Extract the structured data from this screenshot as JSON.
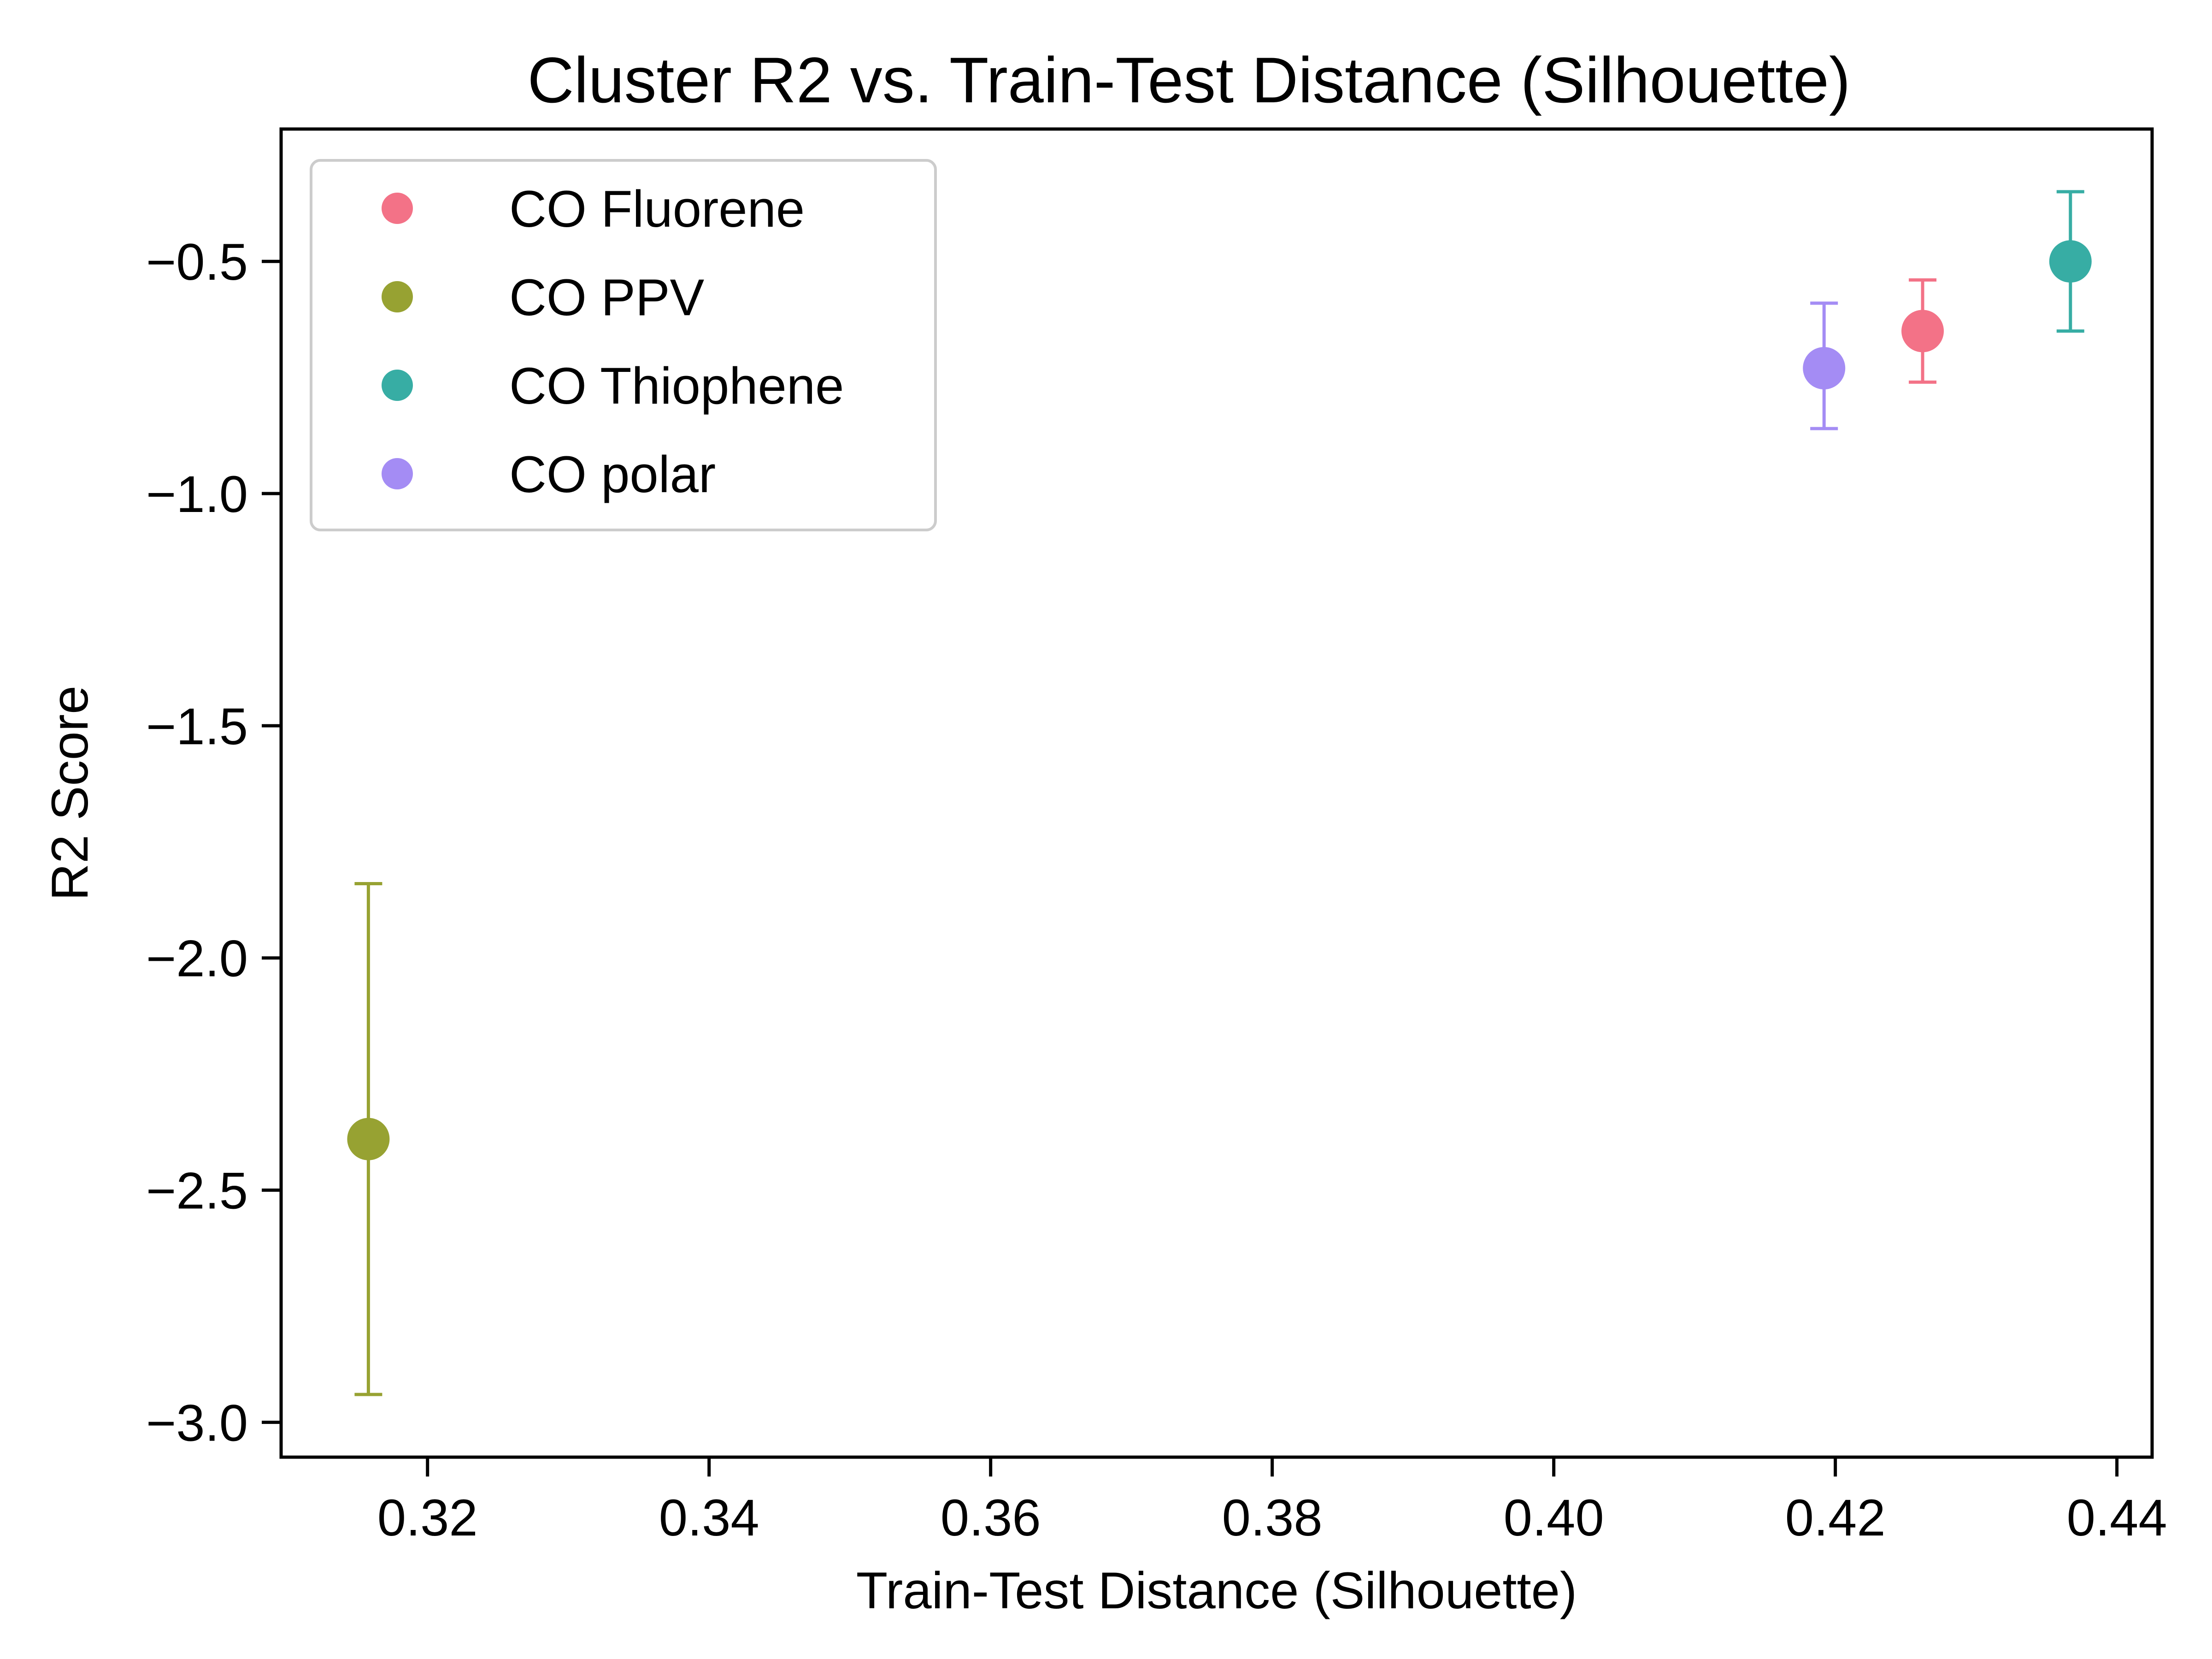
{
  "chart_data": {
    "type": "scatter",
    "title": "Cluster R2 vs. Train-Test Distance (Silhouette)",
    "xlabel": "Train-Test Distance (Silhouette)",
    "ylabel": "R2 Score",
    "xlim": [
      0.3096,
      0.4425
    ],
    "ylim": [
      -3.075,
      -0.215
    ],
    "x_ticks": [
      0.32,
      0.34,
      0.36,
      0.38,
      0.4,
      0.42,
      0.44
    ],
    "x_tick_labels": [
      "0.32",
      "0.34",
      "0.36",
      "0.38",
      "0.40",
      "0.42",
      "0.44"
    ],
    "y_ticks": [
      -0.5,
      -1.0,
      -1.5,
      -2.0,
      -2.5,
      -3.0
    ],
    "y_tick_labels": [
      "−0.5",
      "−1.0",
      "−1.5",
      "−2.0",
      "−2.5",
      "−3.0"
    ],
    "grid": false,
    "legend_position": "top-left",
    "series": [
      {
        "name": "CO Fluorene",
        "color": "#f37287",
        "x": 0.4262,
        "y": -0.65,
        "err_low": -0.76,
        "err_high": -0.54
      },
      {
        "name": "CO PPV",
        "color": "#97a232",
        "x": 0.3158,
        "y": -2.39,
        "err_low": -2.94,
        "err_high": -1.84
      },
      {
        "name": "CO Thiophene",
        "color": "#37ada4",
        "x": 0.4367,
        "y": -0.5,
        "err_low": -0.65,
        "err_high": -0.35
      },
      {
        "name": "CO polar",
        "color": "#a48cf4",
        "x": 0.4192,
        "y": -0.73,
        "err_low": -0.86,
        "err_high": -0.59
      }
    ]
  }
}
